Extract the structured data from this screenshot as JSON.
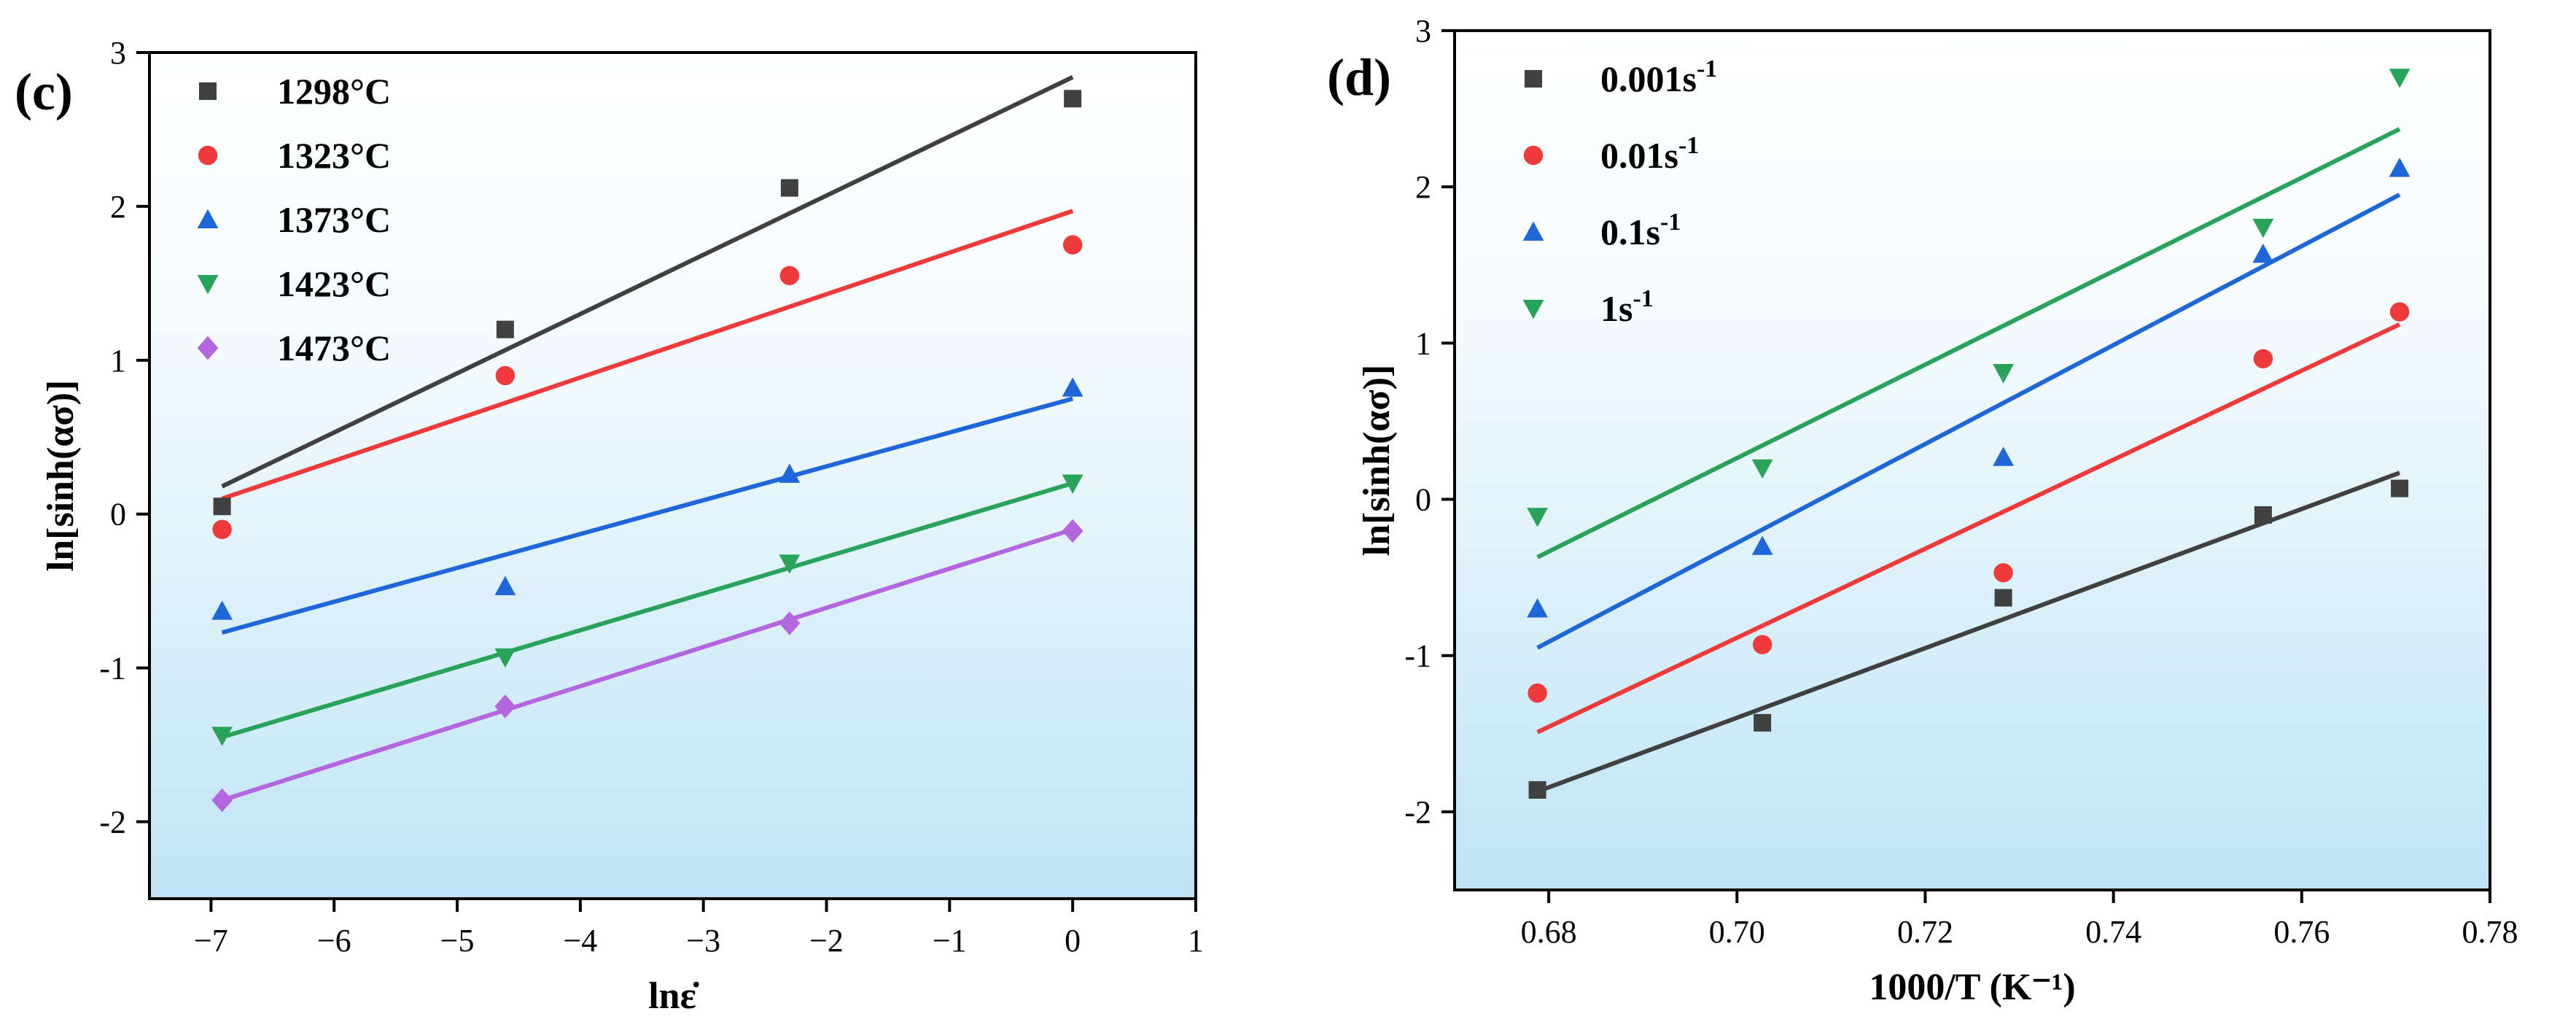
{
  "chart_data": [
    {
      "type": "scatter",
      "panel_label": "(c)",
      "xlabel": "lnε̇",
      "ylabel": "ln[sinh(ασ)]",
      "xlim": [
        -7.5,
        1
      ],
      "ylim": [
        -2.5,
        3
      ],
      "xticks": [
        -7,
        -6,
        -5,
        -4,
        -3,
        -2,
        -1,
        0,
        1
      ],
      "xtick_labels": [
        "−7",
        "−6",
        "−5",
        "−4",
        "−3",
        "−2",
        "−1",
        "0",
        "1"
      ],
      "yticks": [
        -2,
        -1,
        0,
        1,
        2,
        3
      ],
      "ytick_labels": [
        "-2",
        "-1",
        "0",
        "1",
        "2",
        "3"
      ],
      "legend_position": "top-left",
      "background": "gradient-white-to-lightblue",
      "series": [
        {
          "name": "1298°C",
          "marker": "square",
          "color": "#404040",
          "x": [
            -6.91,
            -4.61,
            -2.3,
            0.0
          ],
          "y": [
            0.05,
            1.2,
            2.12,
            2.7
          ],
          "fit": {
            "x": [
              -6.91,
              0.0
            ],
            "y": [
              0.18,
              2.84
            ]
          }
        },
        {
          "name": "1323°C",
          "marker": "circle",
          "color": "#ee3a3a",
          "x": [
            -6.91,
            -4.61,
            -2.3,
            0.0
          ],
          "y": [
            -0.1,
            0.9,
            1.55,
            1.75
          ],
          "fit": {
            "x": [
              -6.91,
              0.0
            ],
            "y": [
              0.1,
              1.97
            ]
          }
        },
        {
          "name": "1373°C",
          "marker": "triangle-up",
          "color": "#1f66d9",
          "x": [
            -6.91,
            -4.61,
            -2.3,
            0.0
          ],
          "y": [
            -0.63,
            -0.47,
            0.26,
            0.82
          ],
          "fit": {
            "x": [
              -6.91,
              0.0
            ],
            "y": [
              -0.77,
              0.75
            ]
          }
        },
        {
          "name": "1423°C",
          "marker": "triangle-down",
          "color": "#2aa35a",
          "x": [
            -6.91,
            -4.61,
            -2.3,
            0.0
          ],
          "y": [
            -1.44,
            -0.93,
            -0.32,
            0.2
          ],
          "fit": {
            "x": [
              -6.91,
              0.0
            ],
            "y": [
              -1.45,
              0.2
            ]
          }
        },
        {
          "name": "1473°C",
          "marker": "diamond",
          "color": "#b366e0",
          "x": [
            -6.91,
            -4.61,
            -2.3,
            0.0
          ],
          "y": [
            -1.86,
            -1.25,
            -0.71,
            -0.11
          ],
          "fit": {
            "x": [
              -6.91,
              0.0
            ],
            "y": [
              -1.86,
              -0.1
            ]
          }
        }
      ]
    },
    {
      "type": "scatter",
      "panel_label": "(d)",
      "xlabel": "1000/T (K⁻¹)",
      "ylabel": "ln[sinh(ασ)]",
      "xlim": [
        0.67,
        0.78
      ],
      "ylim": [
        -2.5,
        3
      ],
      "xticks": [
        0.68,
        0.7,
        0.72,
        0.74,
        0.76,
        0.78
      ],
      "xtick_labels": [
        "0.68",
        "0.70",
        "0.72",
        "0.74",
        "0.76",
        "0.78"
      ],
      "yticks": [
        -2,
        -1,
        0,
        1,
        2,
        3
      ],
      "ytick_labels": [
        "-2",
        "-1",
        "0",
        "1",
        "2",
        "3"
      ],
      "legend_position": "top-left",
      "background": "gradient-white-to-lightblue",
      "series": [
        {
          "name": "0.001s",
          "superscript": "-1",
          "marker": "square",
          "color": "#404040",
          "x": [
            0.6788,
            0.7027,
            0.7283,
            0.7559,
            0.7704
          ],
          "y": [
            -1.86,
            -1.43,
            -0.63,
            -0.1,
            0.07
          ],
          "fit": {
            "x": [
              0.6788,
              0.7704
            ],
            "y": [
              -1.87,
              0.17
            ]
          }
        },
        {
          "name": "0.01s",
          "superscript": "-1",
          "marker": "circle",
          "color": "#ee3a3a",
          "x": [
            0.6788,
            0.7027,
            0.7283,
            0.7559,
            0.7704
          ],
          "y": [
            -1.24,
            -0.93,
            -0.47,
            0.9,
            1.2
          ],
          "fit": {
            "x": [
              0.6788,
              0.7704
            ],
            "y": [
              -1.49,
              1.12
            ]
          }
        },
        {
          "name": "0.1s",
          "superscript": "-1",
          "marker": "triangle-up",
          "color": "#1f66d9",
          "x": [
            0.6788,
            0.7027,
            0.7283,
            0.7559,
            0.7704
          ],
          "y": [
            -0.7,
            -0.3,
            0.27,
            1.57,
            2.12
          ],
          "fit": {
            "x": [
              0.6788,
              0.7704
            ],
            "y": [
              -0.95,
              1.95
            ]
          }
        },
        {
          "name": "1s",
          "superscript": "-1",
          "marker": "triangle-down",
          "color": "#2aa35a",
          "x": [
            0.6788,
            0.7027,
            0.7283,
            0.7559,
            0.7704
          ],
          "y": [
            -0.11,
            0.2,
            0.81,
            1.74,
            2.7
          ],
          "fit": {
            "x": [
              0.6788,
              0.7704
            ],
            "y": [
              -0.37,
              2.37
            ]
          }
        }
      ]
    }
  ]
}
